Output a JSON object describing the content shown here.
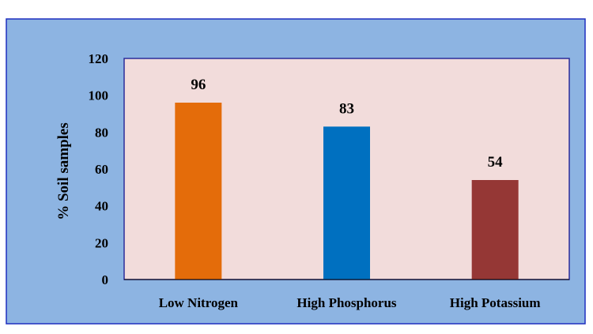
{
  "chart_data": {
    "type": "bar",
    "title": "",
    "xlabel": "",
    "ylabel": "% Soil samples",
    "categories": [
      "Low Nitrogen",
      "High Phosphorus",
      "High Potassium"
    ],
    "values": [
      96,
      83,
      54
    ],
    "data_labels": [
      "96",
      "83",
      "54"
    ],
    "ylim": [
      0,
      120
    ],
    "yticks": [
      0,
      20,
      40,
      60,
      80,
      100,
      120
    ],
    "grid": false,
    "legend": "none",
    "colors": {
      "outer_background": "#8db4e2",
      "plot_background": "#f2dcdb",
      "plot_border": "#2d2d9a",
      "frame_border": "#1f2fbf",
      "axis_line": "#000000",
      "bars": [
        "#e46c0a",
        "#0070c0",
        "#953735"
      ]
    }
  }
}
